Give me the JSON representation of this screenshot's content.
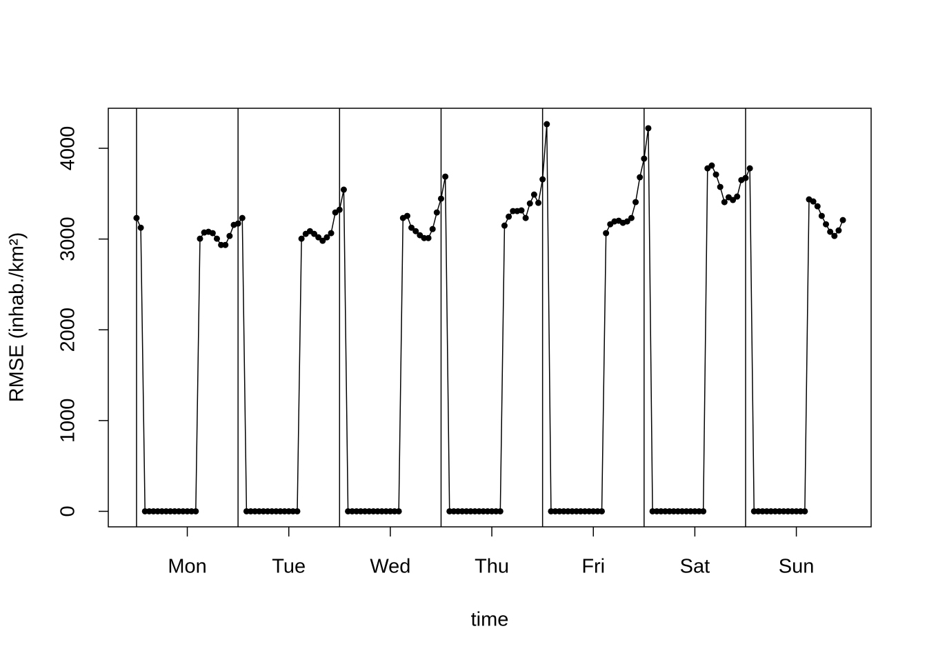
{
  "chart_data": {
    "type": "line",
    "xlabel": "time",
    "ylabel": "RMSE (inhab./km²)",
    "x": [
      0,
      1,
      2,
      3,
      4,
      5,
      6,
      7,
      8,
      9,
      10,
      11,
      12,
      13,
      14,
      15,
      16,
      17,
      18,
      19,
      20,
      21,
      22,
      23,
      24,
      25,
      26,
      27,
      28,
      29,
      30,
      31,
      32,
      33,
      34,
      35,
      36,
      37,
      38,
      39,
      40,
      41,
      42,
      43,
      44,
      45,
      46,
      47,
      48,
      49,
      50,
      51,
      52,
      53,
      54,
      55,
      56,
      57,
      58,
      59,
      60,
      61,
      62,
      63,
      64,
      65,
      66,
      67,
      68,
      69,
      70,
      71,
      72,
      73,
      74,
      75,
      76,
      77,
      78,
      79,
      80,
      81,
      82,
      83,
      84,
      85,
      86,
      87,
      88,
      89,
      90,
      91,
      92,
      93,
      94,
      95,
      96,
      97,
      98,
      99,
      100,
      101,
      102,
      103,
      104,
      105,
      106,
      107,
      108,
      109,
      110,
      111,
      112,
      113,
      114,
      115,
      116,
      117,
      118,
      119,
      120,
      121,
      122,
      123,
      124,
      125,
      126,
      127,
      128,
      129,
      130,
      131,
      132,
      133,
      134,
      135,
      136,
      137,
      138,
      139,
      140,
      141,
      142,
      143,
      144,
      145,
      146,
      147,
      148,
      149,
      150,
      151,
      152,
      153,
      154,
      155,
      156,
      157,
      158,
      159,
      160,
      161,
      162,
      163,
      164,
      165,
      166,
      167
    ],
    "values": [
      3232,
      3125,
      0,
      0,
      0,
      0,
      0,
      0,
      0,
      0,
      0,
      0,
      0,
      0,
      0,
      3004,
      3072,
      3080,
      3065,
      3004,
      2935,
      2935,
      3034,
      3156,
      3171,
      3232,
      0,
      0,
      0,
      0,
      0,
      0,
      0,
      0,
      0,
      0,
      0,
      0,
      0,
      3004,
      3057,
      3087,
      3057,
      3019,
      2981,
      3019,
      3065,
      3293,
      3323,
      3544,
      0,
      0,
      0,
      0,
      0,
      0,
      0,
      0,
      0,
      0,
      0,
      0,
      0,
      3232,
      3255,
      3125,
      3087,
      3042,
      3011,
      3011,
      3110,
      3293,
      3445,
      3688,
      0,
      0,
      0,
      0,
      0,
      0,
      0,
      0,
      0,
      0,
      0,
      0,
      0,
      3148,
      3247,
      3308,
      3308,
      3316,
      3232,
      3392,
      3490,
      3399,
      3658,
      4266,
      0,
      0,
      0,
      0,
      0,
      0,
      0,
      0,
      0,
      0,
      0,
      0,
      0,
      3065,
      3163,
      3194,
      3202,
      3179,
      3194,
      3232,
      3407,
      3681,
      3886,
      4221,
      0,
      0,
      0,
      0,
      0,
      0,
      0,
      0,
      0,
      0,
      0,
      0,
      0,
      3779,
      3810,
      3711,
      3574,
      3407,
      3460,
      3430,
      3468,
      3650,
      3673,
      3779,
      0,
      0,
      0,
      0,
      0,
      0,
      0,
      0,
      0,
      0,
      0,
      0,
      0,
      3437,
      3414,
      3361,
      3255,
      3163,
      3080,
      3034,
      3095,
      3209
    ],
    "color": "#000000",
    "xlim": [
      -6.68,
      173.68
    ],
    "xticks": [
      {
        "value": 12,
        "label": "Mon"
      },
      {
        "value": 36,
        "label": "Tue"
      },
      {
        "value": 60,
        "label": "Wed"
      },
      {
        "value": 84,
        "label": "Thu"
      },
      {
        "value": 108,
        "label": "Fri"
      },
      {
        "value": 132,
        "label": "Sat"
      },
      {
        "value": 156,
        "label": "Sun"
      }
    ],
    "vlines": [
      0,
      24,
      48,
      72,
      96,
      120,
      144
    ],
    "ylim": [
      -171,
      4441
    ],
    "yticks": [
      0,
      1000,
      2000,
      3000,
      4000
    ]
  }
}
